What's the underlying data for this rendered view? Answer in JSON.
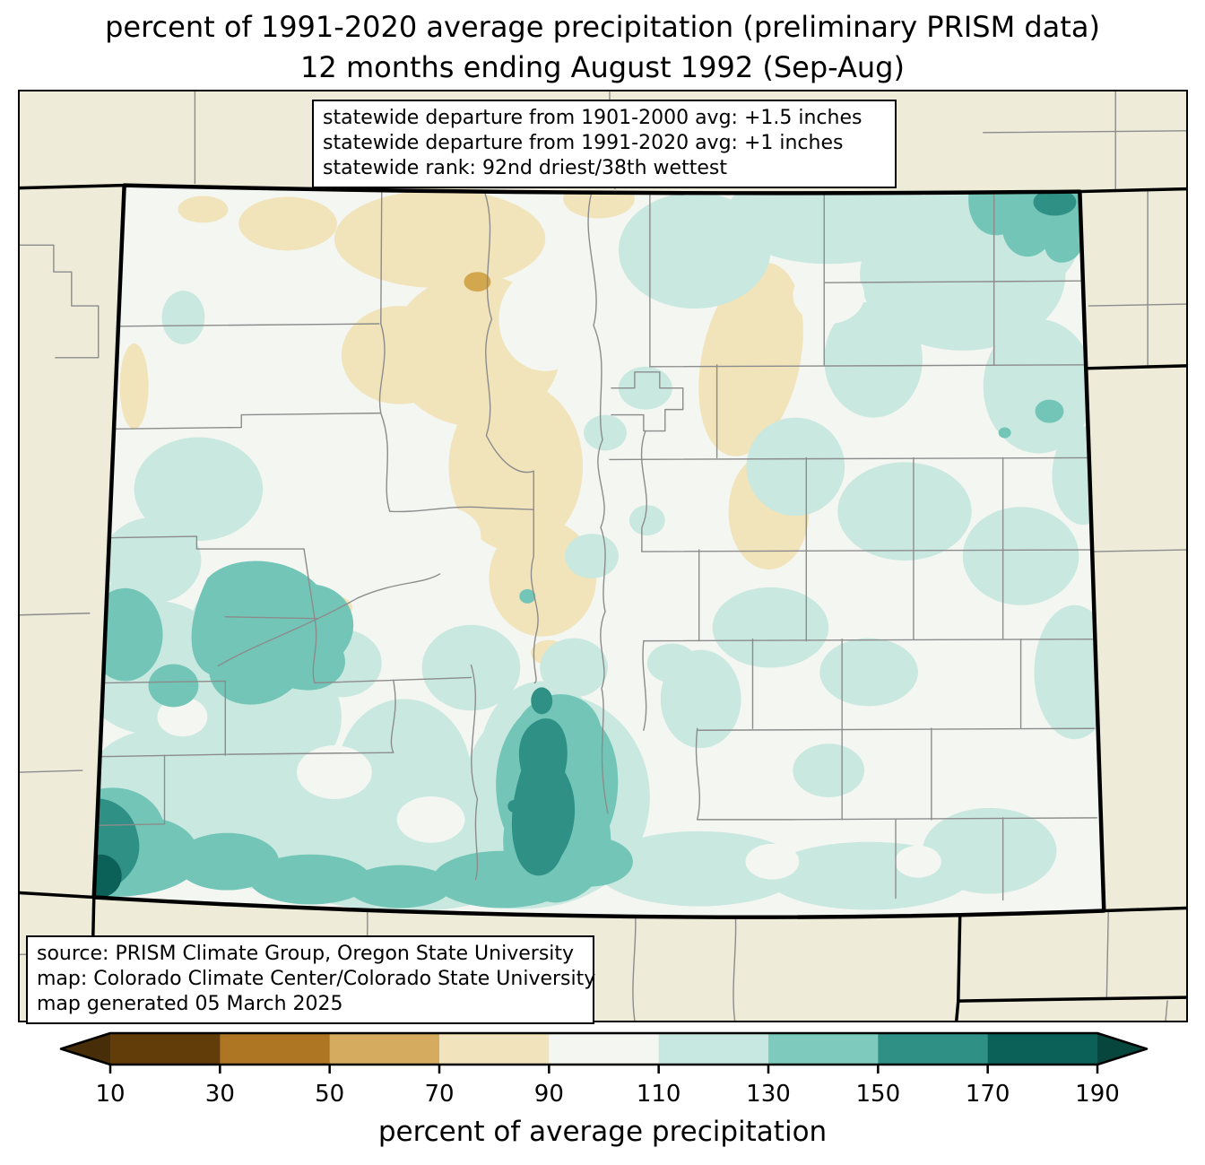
{
  "title": {
    "line1": "percent of 1991-2020 average precipitation (preliminary PRISM data)",
    "line2": "12 months ending August 1992 (Sep-Aug)"
  },
  "stats_box": {
    "line1": "statewide departure from 1901-2000 avg: +1.5 inches",
    "line2": "statewide departure from 1991-2020 avg: +1 inches",
    "line3": "statewide rank: 92nd driest/38th wettest"
  },
  "source_box": {
    "line1": "source: PRISM Climate Group, Oregon State University",
    "line2": "map: Colorado Climate Center/Colorado State University",
    "line3": "map generated 05 March 2025"
  },
  "colorbar": {
    "title": "percent of average precipitation",
    "ticks": [
      "10",
      "30",
      "50",
      "70",
      "90",
      "110",
      "130",
      "150",
      "170",
      "190"
    ],
    "segment_colors": [
      "#623c09",
      "#ae7523",
      "#d4ab5f",
      "#f1e4bd",
      "#f4f6f2",
      "#c7e8e0",
      "#7ecabd",
      "#2f9086",
      "#0b6158"
    ],
    "under_arrow_color": "#472d08",
    "over_arrow_color": "#07463d"
  },
  "palette": {
    "base90": "#f4f6f2",
    "tan70": "#f1e3ba",
    "orange50": "#d2a74e",
    "teal110": "#c9e8e0",
    "teal130": "#72c5b7",
    "teal150": "#2f9086",
    "teal170": "#0b6158",
    "outside": "#eeebd8",
    "countyLine": "#8c8c8c",
    "stateLine": "#000000"
  }
}
